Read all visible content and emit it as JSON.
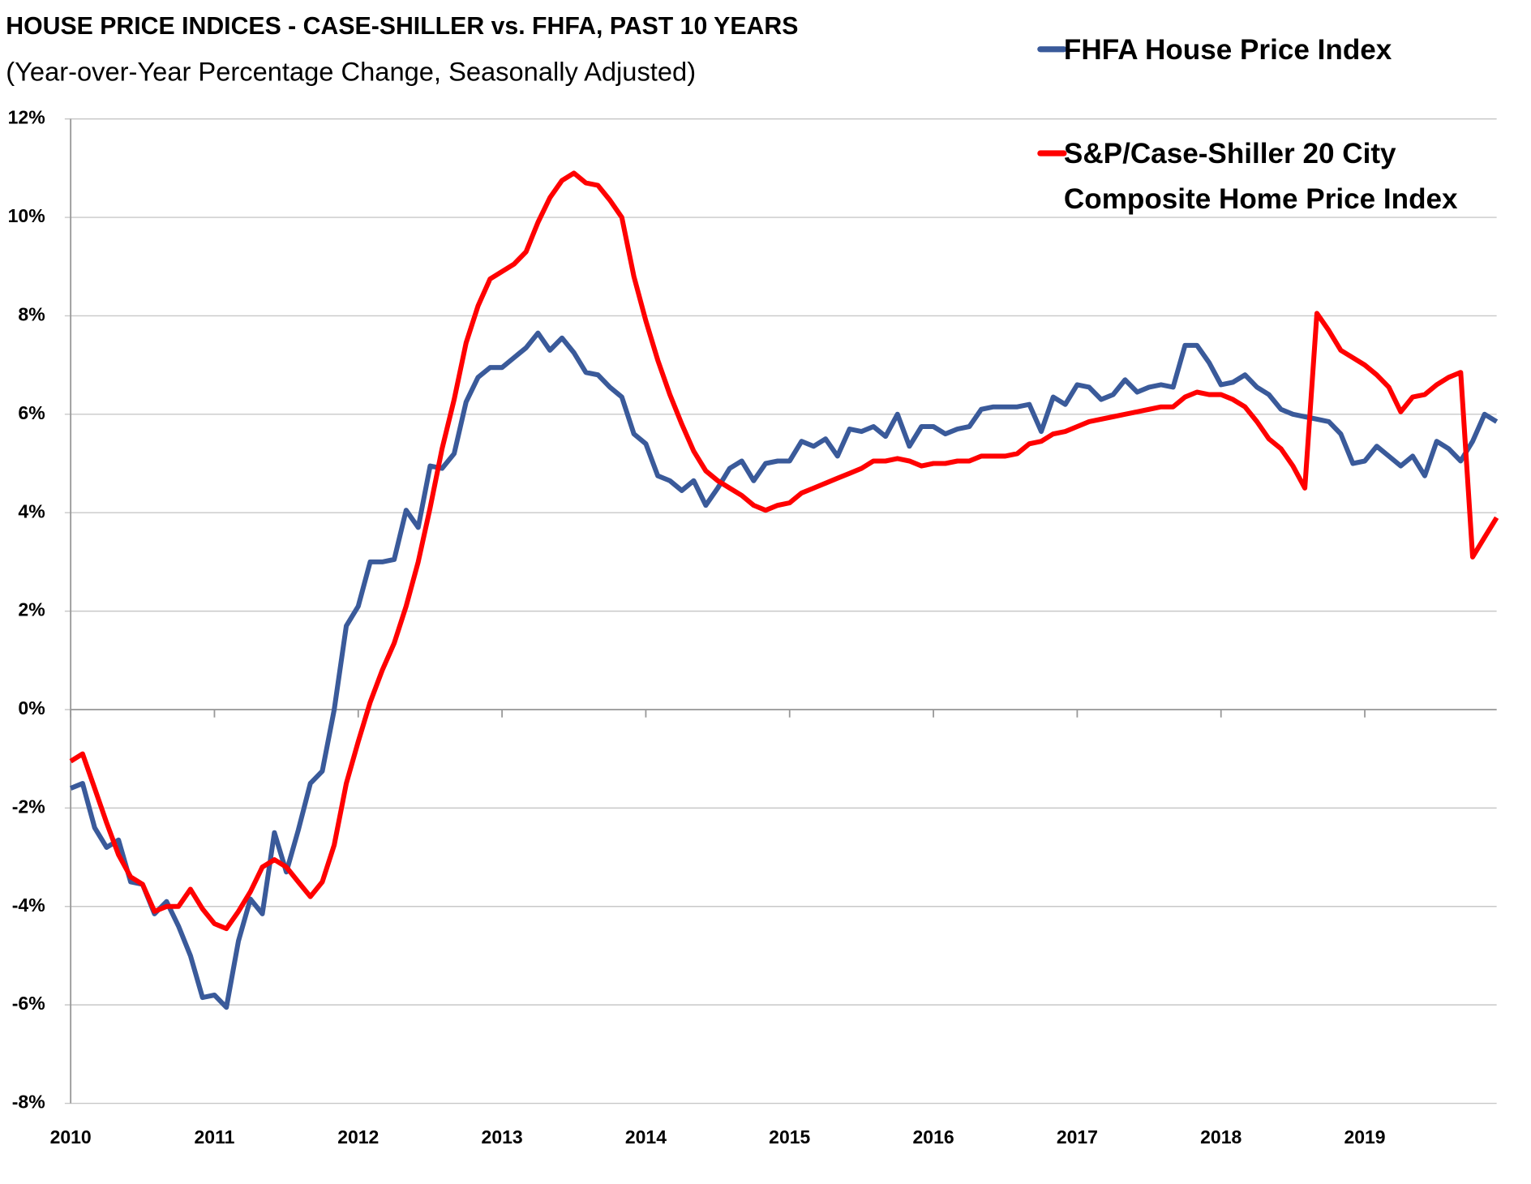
{
  "chart_data": {
    "type": "line",
    "title": "HOUSE PRICE INDICES - CASE-SHILLER vs. FHFA, PAST 10 YEARS",
    "subtitle": "(Year-over-Year Percentage Change, Seasonally Adjusted)",
    "x": [
      2010,
      2010.083,
      2010.167,
      2010.25,
      2010.333,
      2010.417,
      2010.5,
      2010.583,
      2010.667,
      2010.75,
      2010.833,
      2010.917,
      2011,
      2011.083,
      2011.167,
      2011.25,
      2011.333,
      2011.417,
      2011.5,
      2011.583,
      2011.667,
      2011.75,
      2011.833,
      2011.917,
      2012,
      2012.083,
      2012.167,
      2012.25,
      2012.333,
      2012.417,
      2012.5,
      2012.583,
      2012.667,
      2012.75,
      2012.833,
      2012.917,
      2013,
      2013.083,
      2013.167,
      2013.25,
      2013.333,
      2013.417,
      2013.5,
      2013.583,
      2013.667,
      2013.75,
      2013.833,
      2013.917,
      2014,
      2014.083,
      2014.167,
      2014.25,
      2014.333,
      2014.417,
      2014.5,
      2014.583,
      2014.667,
      2014.75,
      2014.833,
      2014.917,
      2015,
      2015.083,
      2015.167,
      2015.25,
      2015.333,
      2015.417,
      2015.5,
      2015.583,
      2015.667,
      2015.75,
      2015.833,
      2015.917,
      2016,
      2016.083,
      2016.167,
      2016.25,
      2016.333,
      2016.417,
      2016.5,
      2016.583,
      2016.667,
      2016.75,
      2016.833,
      2016.917,
      2017,
      2017.083,
      2017.167,
      2017.25,
      2017.333,
      2017.417,
      2017.5,
      2017.583,
      2017.667,
      2017.75,
      2017.833,
      2017.917,
      2018,
      2018.083,
      2018.167,
      2018.25,
      2018.333,
      2018.417,
      2018.5,
      2018.583,
      2018.667,
      2018.75,
      2018.833,
      2018.917,
      2019,
      2019.083,
      2019.167,
      2019.25,
      2019.333,
      2019.417,
      2019.5,
      2019.583,
      2019.667,
      2019.75,
      2019.833,
      2019.917
    ],
    "series": [
      {
        "name": "FHFA House Price Index",
        "color": "#3a5a9a",
        "values": [
          -1.6,
          -1.5,
          -2.4,
          -2.8,
          -2.65,
          -3.5,
          -3.55,
          -4.15,
          -3.9,
          -4.4,
          -5.0,
          -5.85,
          -5.8,
          -6.05,
          -4.7,
          -3.85,
          -4.15,
          -2.5,
          -3.3,
          -2.45,
          -1.5,
          -1.25,
          0.0,
          1.7,
          2.1,
          3.0,
          3.0,
          3.05,
          4.05,
          3.7,
          4.95,
          4.9,
          5.2,
          6.25,
          6.75,
          6.95,
          6.95,
          7.15,
          7.35,
          7.65,
          7.3,
          7.55,
          7.25,
          6.85,
          6.8,
          6.55,
          6.35,
          5.6,
          5.4,
          4.75,
          4.65,
          4.45,
          4.65,
          4.15,
          4.5,
          4.9,
          5.05,
          4.65,
          5.0,
          5.05,
          5.05,
          5.45,
          5.35,
          5.5,
          5.15,
          5.7,
          5.65,
          5.75,
          5.55,
          6.0,
          5.35,
          5.75,
          5.75,
          5.6,
          5.7,
          5.75,
          6.1,
          6.15,
          6.15,
          6.15,
          6.2,
          5.65,
          6.35,
          6.2,
          6.6,
          6.55,
          6.3,
          6.4,
          6.7,
          6.45,
          6.55,
          6.6,
          6.55,
          7.4,
          7.4,
          7.05,
          6.6,
          6.65,
          6.8,
          6.55,
          6.4,
          6.1,
          6.0,
          5.95,
          5.9,
          5.85,
          5.6,
          5.0,
          5.05,
          5.35,
          5.15,
          4.95,
          5.15,
          4.75,
          5.45,
          5.3,
          5.05,
          5.45,
          6.0,
          5.85
        ]
      },
      {
        "name": "S&P/Case-Shiller 20 City Composite Home Price Index",
        "color": "#ff0000",
        "values": [
          -1.05,
          -0.9,
          -1.6,
          -2.3,
          -2.95,
          -3.4,
          -3.55,
          -4.1,
          -4.0,
          -4.0,
          -3.65,
          -4.05,
          -4.35,
          -4.45,
          -4.1,
          -3.7,
          -3.2,
          -3.05,
          -3.2,
          -3.5,
          -3.8,
          -3.5,
          -2.75,
          -1.5,
          -0.65,
          0.15,
          0.8,
          1.35,
          2.1,
          3.0,
          4.1,
          5.3,
          6.3,
          7.45,
          8.2,
          8.75,
          8.9,
          9.05,
          9.3,
          9.9,
          10.4,
          10.75,
          10.9,
          10.7,
          10.65,
          10.35,
          10.0,
          8.8,
          7.9,
          7.1,
          6.4,
          5.8,
          5.25,
          4.85,
          4.65,
          4.5,
          4.35,
          4.15,
          4.05,
          4.15,
          4.2,
          4.4,
          4.5,
          4.6,
          4.7,
          4.8,
          4.9,
          5.05,
          5.05,
          5.1,
          5.05,
          4.95,
          5.0,
          5.0,
          5.05,
          5.05,
          5.15,
          5.15,
          5.15,
          5.2,
          5.4,
          5.45,
          5.6,
          5.65,
          5.75,
          5.85,
          5.9,
          5.95,
          6.0,
          6.05,
          6.1,
          6.15,
          6.15,
          6.35,
          6.45,
          6.4,
          6.4,
          6.3,
          6.15,
          5.85,
          5.5,
          5.3,
          4.95,
          4.5,
          8.05,
          7.7,
          7.3,
          7.15,
          7.0,
          6.8,
          6.55,
          6.05,
          6.35,
          6.4,
          6.6,
          6.75,
          6.85,
          3.1,
          3.5,
          3.9
        ]
      }
    ],
    "xlim": [
      2010,
      2019.917
    ],
    "xticks": [
      2010,
      2011,
      2012,
      2013,
      2014,
      2015,
      2016,
      2017,
      2018,
      2019
    ],
    "ylim": [
      -8,
      12
    ],
    "yticks": [
      {
        "value": -8,
        "label": "-8%"
      },
      {
        "value": -6,
        "label": "-6%"
      },
      {
        "value": -4,
        "label": "-4%"
      },
      {
        "value": -2,
        "label": "-2%"
      },
      {
        "value": 0,
        "label": "0%"
      },
      {
        "value": 2,
        "label": "2%"
      },
      {
        "value": 4,
        "label": "4%"
      },
      {
        "value": 6,
        "label": "6%"
      },
      {
        "value": 8,
        "label": "8%"
      },
      {
        "value": 10,
        "label": "10%"
      },
      {
        "value": 12,
        "label": "12%"
      }
    ],
    "grid": true,
    "legend": "top-right"
  }
}
